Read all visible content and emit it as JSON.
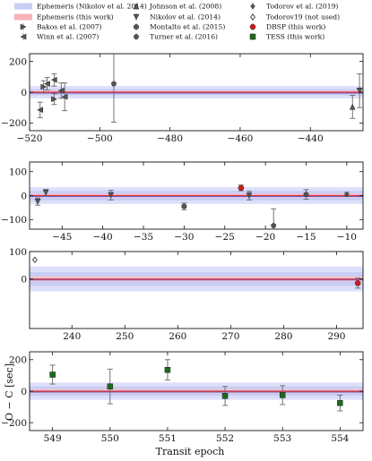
{
  "legend": {
    "col1": [
      {
        "key": "eph_n14",
        "label": "Ephemeris (Nikolov et al. 2014)",
        "kind": "band",
        "color": "#c9cdf5"
      },
      {
        "key": "eph_tw",
        "label": "Ephemeris (this work)",
        "kind": "band",
        "color": "#f5b3b8"
      },
      {
        "key": "bakos",
        "label": "Bakos et al. (2007)",
        "kind": "marker",
        "marker": "tri-right",
        "color": "#555555"
      },
      {
        "key": "winn",
        "label": "Winn et al. (2007)",
        "kind": "marker",
        "marker": "tri-left",
        "color": "#555555"
      }
    ],
    "col2": [
      {
        "key": "johnson",
        "label": "Johnson et al. (2008)",
        "kind": "marker",
        "marker": "tri-up",
        "color": "#555555"
      },
      {
        "key": "nikolov",
        "label": "Nikolov et al. (2014)",
        "kind": "marker",
        "marker": "tri-down",
        "color": "#555555"
      },
      {
        "key": "montalto",
        "label": "Montalto et al. (2015)",
        "kind": "marker",
        "marker": "hexagon",
        "color": "#555555"
      },
      {
        "key": "turner",
        "label": "Turner et al. (2016)",
        "kind": "marker",
        "marker": "pentagon",
        "color": "#555555"
      }
    ],
    "col3": [
      {
        "key": "todorov",
        "label": "Todorov et al. (2019)",
        "kind": "marker",
        "marker": "diamond",
        "color": "#555555"
      },
      {
        "key": "todorov_nu",
        "label": "Todorov19 (not used)",
        "kind": "marker",
        "marker": "diamond-open",
        "color": "#555555"
      },
      {
        "key": "dbsp",
        "label": "DBSP (this work)",
        "kind": "marker",
        "marker": "circle",
        "color": "#d11a1a"
      },
      {
        "key": "tess",
        "label": "TESS (this work)",
        "kind": "marker",
        "marker": "square",
        "color": "#1b6b1b"
      }
    ]
  },
  "colors": {
    "band_outer": "#dde0fa",
    "band_inner": "#c8cdf5",
    "band_red": "#f7c4c8",
    "zero_line": "#e0303a",
    "blue_line": "#5a62d6",
    "errbar": "#666666"
  },
  "chart_data": [
    {
      "type": "scatter",
      "panel": 1,
      "xlim": [
        -520,
        -425
      ],
      "ylim": [
        -250,
        250
      ],
      "xticks": [
        -520,
        -500,
        -480,
        -460,
        -440
      ],
      "xtick_labels": [
        "−520",
        "−500",
        "−480",
        "−460",
        "−440"
      ],
      "yticks": [
        -200,
        0,
        200
      ],
      "ytick_labels": [
        "−200",
        "0",
        "200"
      ],
      "bands": {
        "blue_outer": 40,
        "blue_inner": 20,
        "red": 12
      },
      "series": [
        {
          "key": "bakos",
          "points": [
            [
              -516,
              35,
              40
            ],
            [
              -513,
              -45,
              35
            ]
          ]
        },
        {
          "key": "winn",
          "points": [
            [
              -517,
              -115,
              50
            ],
            [
              -515,
              55,
              40
            ],
            [
              -513,
              80,
              40
            ],
            [
              -511,
              10,
              50
            ],
            [
              -510,
              -30,
              90
            ]
          ]
        },
        {
          "key": "turner",
          "points": [
            [
              -496,
              55,
              250
            ]
          ]
        },
        {
          "key": "johnson",
          "points": [
            [
              -428,
              -95,
              75
            ]
          ]
        },
        {
          "key": "nikolov",
          "points": [
            [
              -426,
              10,
              110
            ]
          ]
        }
      ]
    },
    {
      "type": "scatter",
      "panel": 2,
      "xlim": [
        -49,
        -8
      ],
      "ylim": [
        -140,
        140
      ],
      "xticks": [
        -45,
        -40,
        -35,
        -30,
        -25,
        -20,
        -15,
        -10
      ],
      "xtick_labels": [
        "−45",
        "−40",
        "−35",
        "−30",
        "−25",
        "−20",
        "−15",
        "−10"
      ],
      "yticks": [
        -100,
        0,
        100
      ],
      "ytick_labels": [
        "−100",
        "0",
        "100"
      ],
      "bands": {
        "blue_outer": 35,
        "blue_inner": 20,
        "red": 8
      },
      "series": [
        {
          "key": "nikolov",
          "points": [
            [
              -48,
              -25,
              15
            ],
            [
              -47,
              13,
              12
            ],
            [
              -39,
              2,
              20
            ],
            [
              -22,
              0,
              18
            ]
          ]
        },
        {
          "key": "montalto",
          "points": [
            [
              -30,
              -45,
              14
            ]
          ]
        },
        {
          "key": "dbsp",
          "points": [
            [
              -23,
              32,
              12
            ]
          ]
        },
        {
          "key": "turner",
          "points": [
            [
              -19,
              -125,
              70
            ],
            [
              -15,
              5,
              20
            ]
          ]
        },
        {
          "key": "todorov",
          "points": [
            [
              -10,
              5,
              8
            ]
          ]
        }
      ]
    },
    {
      "type": "scatter",
      "panel": 3,
      "xlim": [
        232,
        295
      ],
      "ylim": [
        -180,
        100
      ],
      "xticks": [
        240,
        250,
        260,
        270,
        280,
        290
      ],
      "xtick_labels": [
        "240",
        "250",
        "260",
        "270",
        "280",
        "290"
      ],
      "yticks": [
        0,
        100
      ],
      "ytick_labels": [
        "0",
        "100"
      ],
      "bands": {
        "blue_outer": 45,
        "blue_inner": 25,
        "red": 10
      },
      "series": [
        {
          "key": "todorov_nu",
          "points": [
            [
              233,
              70,
              0
            ]
          ]
        },
        {
          "key": "dbsp",
          "points": [
            [
              294,
              -15,
              18
            ]
          ]
        }
      ]
    },
    {
      "type": "scatter",
      "panel": 4,
      "xlim": [
        548.6,
        554.4
      ],
      "ylim": [
        -250,
        250
      ],
      "xticks": [
        549,
        550,
        551,
        552,
        553,
        554
      ],
      "xtick_labels": [
        "549",
        "550",
        "551",
        "552",
        "553",
        "554"
      ],
      "yticks": [
        -200,
        0,
        200
      ],
      "ytick_labels": [
        "−200",
        "0",
        "200"
      ],
      "bands": {
        "blue_outer": 55,
        "blue_inner": 30,
        "red": 14
      },
      "series": [
        {
          "key": "tess",
          "points": [
            [
              549,
              105,
              60
            ],
            [
              550,
              30,
              110
            ],
            [
              551,
              135,
              65
            ],
            [
              552,
              -30,
              60
            ],
            [
              553,
              -25,
              60
            ],
            [
              554,
              -75,
              50
            ]
          ]
        }
      ],
      "xlabel": "Transit epoch",
      "ylabel": "O − C [sec]"
    }
  ]
}
